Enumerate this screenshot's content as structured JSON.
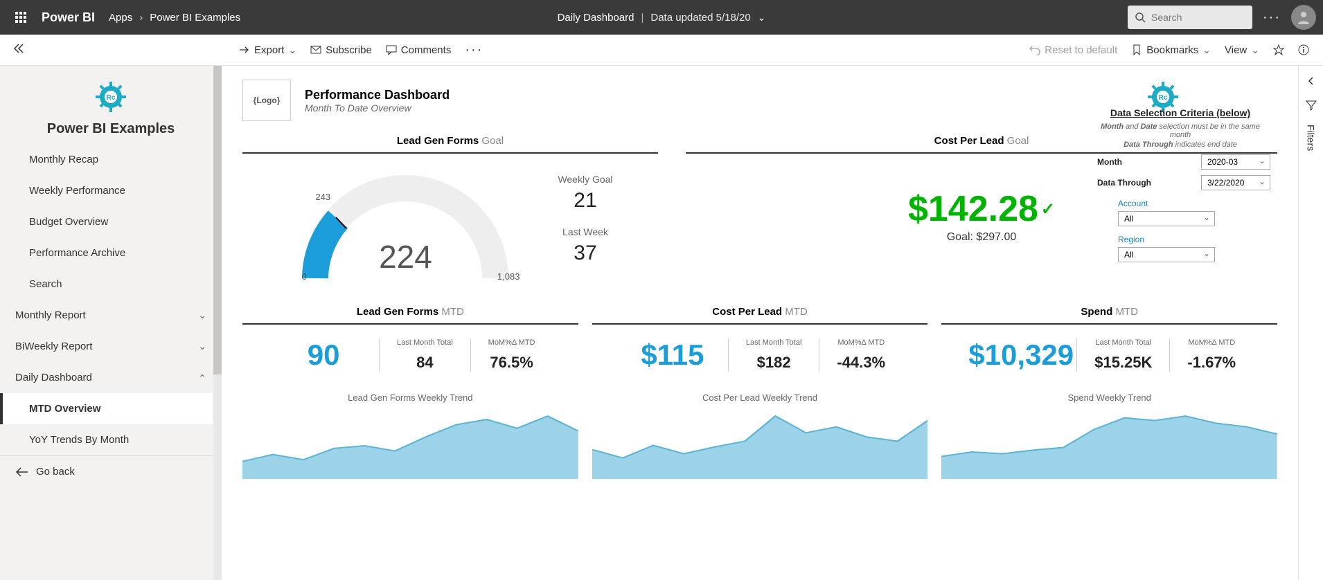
{
  "topbar": {
    "brand": "Power BI",
    "apps": "Apps",
    "workspace": "Power BI Examples",
    "center_title": "Daily Dashboard",
    "updated": "Data updated 5/18/20",
    "search_placeholder": "Search"
  },
  "toolbar": {
    "export": "Export",
    "subscribe": "Subscribe",
    "comments": "Comments",
    "reset": "Reset to default",
    "bookmarks": "Bookmarks",
    "view": "View"
  },
  "sidebar": {
    "workspace": "Power BI Examples",
    "items": [
      {
        "label": "Monthly Recap"
      },
      {
        "label": "Weekly Performance"
      },
      {
        "label": "Budget Overview"
      },
      {
        "label": "Performance Archive"
      },
      {
        "label": "Search"
      }
    ],
    "sections": [
      {
        "label": "Monthly Report",
        "expanded": false
      },
      {
        "label": "BiWeekly Report",
        "expanded": false
      },
      {
        "label": "Daily Dashboard",
        "expanded": true,
        "children": [
          {
            "label": "MTD Overview",
            "active": true
          },
          {
            "label": "YoY Trends By Month"
          }
        ]
      }
    ],
    "back": "Go back"
  },
  "dashboard": {
    "logo_text": "{Logo}",
    "title": "Performance Dashboard",
    "subtitle": "Month To Date Overview",
    "selection": {
      "heading": "Data Selection Criteria (below)",
      "note1": "Month and Date selection must be in the same month",
      "note2": "Data Through indicates end date",
      "month_lbl": "Month",
      "month_val": "2020-03",
      "through_lbl": "Data Through",
      "through_val": "3/22/2020",
      "account_lbl": "Account",
      "account_val": "All",
      "region_lbl": "Region",
      "region_val": "All"
    },
    "leadgen_goal": {
      "title_bold": "Lead Gen Forms",
      "title_light": "Goal",
      "gauge": {
        "value": 224,
        "current": 243,
        "min": 0,
        "max": 1083,
        "max_label": "1,083",
        "fill_color": "#1a9dd9",
        "track_color": "#eeeeee",
        "value_color": "#555555",
        "start_angle": 180,
        "end_angle": 0,
        "fill_angle_deg": 42
      },
      "weekly_goal_lbl": "Weekly Goal",
      "weekly_goal_val": "21",
      "last_week_lbl": "Last Week",
      "last_week_val": "37"
    },
    "cpl_goal": {
      "title_bold": "Cost Per Lead",
      "title_light": "Goal",
      "value": "$142.28",
      "goal": "Goal: $297.00",
      "color": "#00b300"
    },
    "mtd_row": [
      {
        "title_bold": "Lead Gen Forms",
        "title_light": "MTD",
        "big": "90",
        "last_lbl": "Last Month Total",
        "last_val": "84",
        "mom_lbl": "MoM%Δ MTD",
        "mom_val": "76.5%",
        "trend_title": "Lead Gen Forms Weekly Trend",
        "trend": {
          "points": [
            20,
            28,
            22,
            35,
            38,
            32,
            48,
            62,
            68,
            58,
            72,
            55
          ],
          "fill": "#9dd3e8",
          "stroke": "#5ab4d6"
        }
      },
      {
        "title_bold": "Cost Per Lead",
        "title_light": "MTD",
        "big": "$115",
        "last_lbl": "Last Month Total",
        "last_val": "$182",
        "mom_lbl": "MoM%Δ MTD",
        "mom_val": "-44.3%",
        "trend_title": "Cost Per Lead Weekly Trend",
        "trend": {
          "points": [
            35,
            25,
            40,
            30,
            38,
            45,
            75,
            55,
            62,
            50,
            45,
            70
          ],
          "fill": "#9dd3e8",
          "stroke": "#5ab4d6"
        }
      },
      {
        "title_bold": "Spend",
        "title_light": "MTD",
        "big": "$10,329",
        "last_lbl": "Last Month Total",
        "last_val": "$15.25K",
        "mom_lbl": "MoM%Δ MTD",
        "mom_val": "-1.67%",
        "trend_title": "Spend Weekly Trend",
        "trend": {
          "points": [
            25,
            30,
            28,
            32,
            35,
            55,
            68,
            65,
            70,
            62,
            58,
            50
          ],
          "fill": "#9dd3e8",
          "stroke": "#5ab4d6"
        }
      }
    ]
  },
  "filters": {
    "label": "Filters"
  }
}
